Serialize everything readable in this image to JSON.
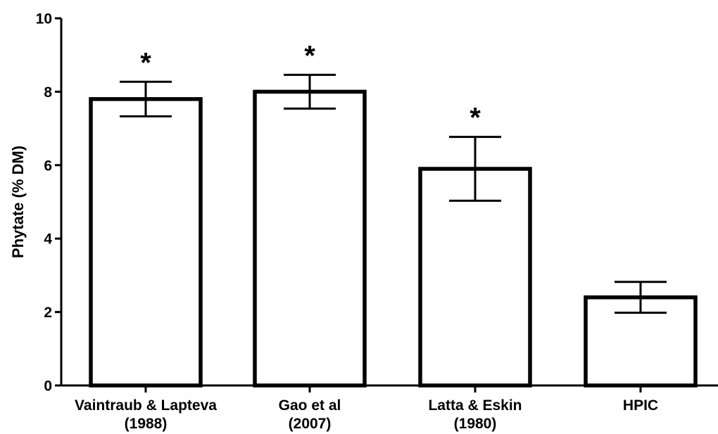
{
  "chart_data": {
    "type": "bar",
    "ylabel": "Phytate (% DM)",
    "xlabel": "",
    "ylim": [
      0,
      10
    ],
    "yticks": [
      0,
      2,
      4,
      6,
      8,
      10
    ],
    "ytick_labels": [
      "0",
      "2",
      "4",
      "6",
      "8",
      "10"
    ],
    "categories": [
      [
        "Vaintraub & Lapteva",
        "(1988)"
      ],
      [
        "Gao et al",
        "(2007)"
      ],
      [
        "Latta & Eskin",
        "(1980)"
      ],
      [
        "HPIC"
      ]
    ],
    "values": [
      7.8,
      8.0,
      5.9,
      2.4
    ],
    "errors": [
      0.47,
      0.46,
      0.87,
      0.42
    ],
    "annotations": [
      "*",
      "*",
      "*",
      ""
    ],
    "bar_fill": "#ffffff",
    "bar_stroke": "#000000",
    "grid": false
  }
}
